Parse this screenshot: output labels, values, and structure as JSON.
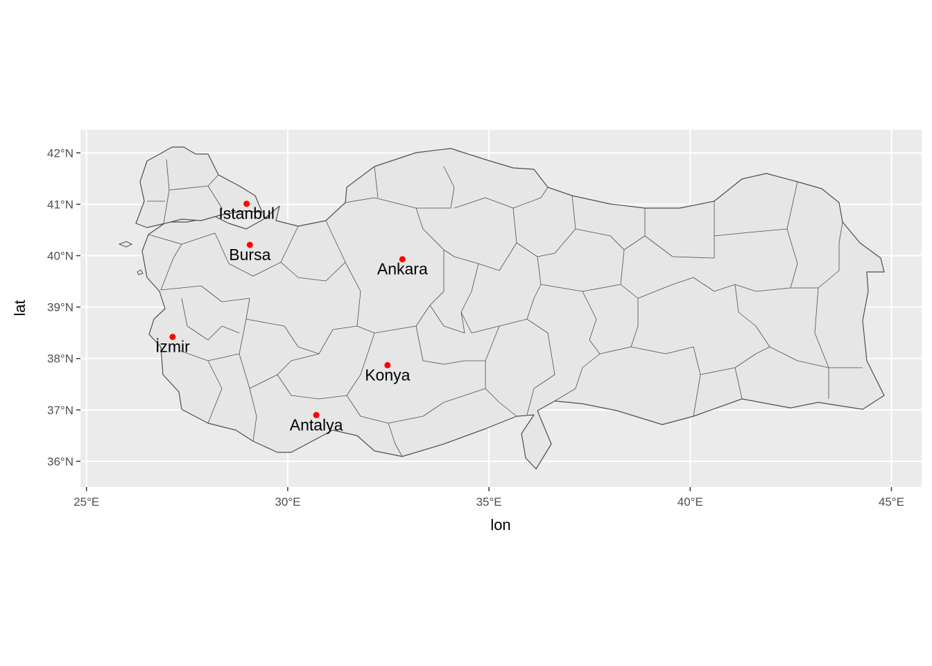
{
  "map": {
    "xlabel": "lon",
    "ylabel": "lat",
    "xlim": [
      24.85,
      45.75
    ],
    "ylim": [
      35.5,
      42.45
    ],
    "x_ticks": [
      {
        "value": 25,
        "label": "25°E"
      },
      {
        "value": 30,
        "label": "30°E"
      },
      {
        "value": 35,
        "label": "35°E"
      },
      {
        "value": 40,
        "label": "40°E"
      },
      {
        "value": 45,
        "label": "45°E"
      }
    ],
    "y_ticks": [
      {
        "value": 36,
        "label": "36°N"
      },
      {
        "value": 37,
        "label": "37°N"
      },
      {
        "value": 38,
        "label": "38°N"
      },
      {
        "value": 39,
        "label": "39°N"
      },
      {
        "value": 40,
        "label": "40°N"
      },
      {
        "value": 41,
        "label": "41°N"
      },
      {
        "value": 42,
        "label": "42°N"
      }
    ],
    "panel_color": "#ebebeb",
    "grid_color": "#ffffff",
    "land_fill": "#e6e6e6",
    "border_color": "#4d4d4d",
    "point_color": "#ff0000",
    "cities": [
      {
        "name": "Istanbul",
        "lon": 28.98,
        "lat": 41.01
      },
      {
        "name": "Bursa",
        "lon": 29.06,
        "lat": 40.21
      },
      {
        "name": "Ankara",
        "lon": 32.85,
        "lat": 39.93
      },
      {
        "name": "İzmir",
        "lon": 27.14,
        "lat": 38.42
      },
      {
        "name": "Konya",
        "lon": 32.48,
        "lat": 37.87
      },
      {
        "name": "Antalya",
        "lon": 30.71,
        "lat": 36.9
      }
    ]
  }
}
